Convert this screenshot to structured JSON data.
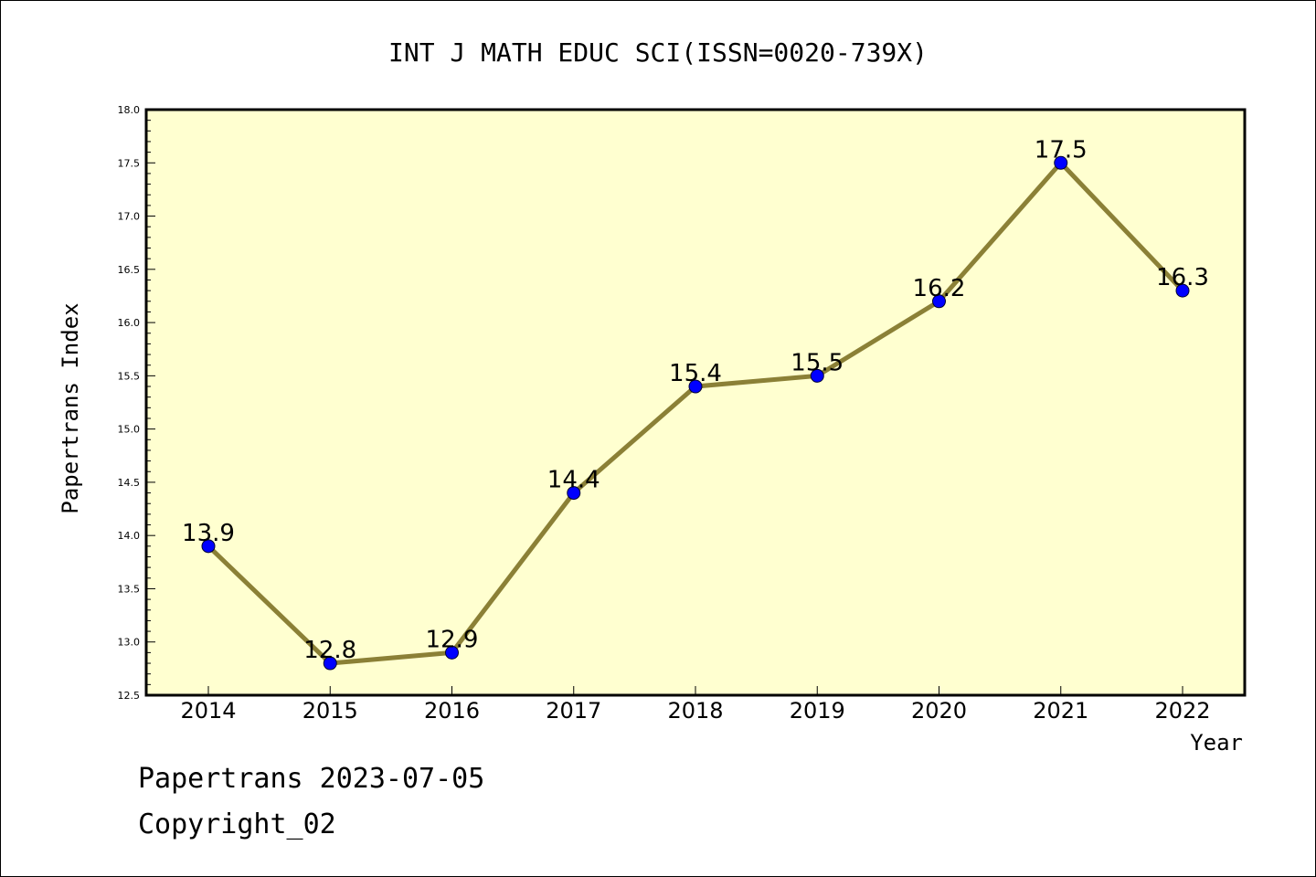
{
  "chart_data": {
    "type": "line",
    "title": "INT J MATH EDUC SCI(ISSN=0020-739X)",
    "xlabel": "Year",
    "ylabel": "Papertrans Index",
    "categories": [
      "2014",
      "2015",
      "2016",
      "2017",
      "2018",
      "2019",
      "2020",
      "2021",
      "2022"
    ],
    "values": [
      13.9,
      12.8,
      12.9,
      14.4,
      15.4,
      15.5,
      16.2,
      17.5,
      16.3
    ],
    "data_labels": [
      "13.9",
      "12.8",
      "12.9",
      "14.4",
      "15.4",
      "15.5",
      "16.2",
      "17.5",
      "16.3"
    ],
    "ylim": [
      12.5,
      18.0
    ],
    "yticks": [
      "12.5",
      "13.0",
      "13.5",
      "14.0",
      "14.5",
      "15.0",
      "15.5",
      "16.0",
      "16.5",
      "17.0",
      "17.5",
      "18.0"
    ],
    "grid": false,
    "colors": {
      "plot_background": "#ffffd0",
      "line": "#8b8036",
      "marker": "#0000ff"
    }
  },
  "footer": {
    "line1": "Papertrans 2023-07-05",
    "line2": "Copyright_02"
  }
}
